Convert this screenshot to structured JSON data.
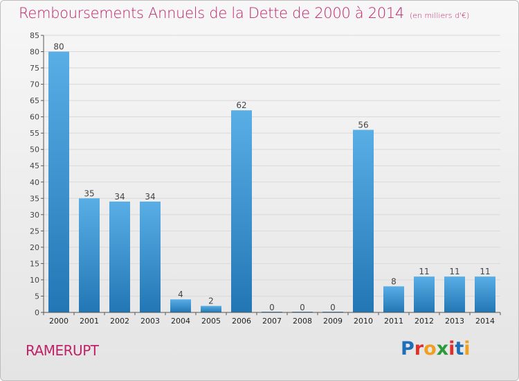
{
  "header": {
    "title": "Remboursements Annuels de la Dette de 2000 à 2014",
    "subtitle": "(en milliers d'€)"
  },
  "footer": {
    "commune": "RAMERUPT",
    "brand_letters": [
      {
        "char": "P",
        "color": "#1f6fb8"
      },
      {
        "char": "r",
        "color": "#e0302a"
      },
      {
        "char": "o",
        "color": "#f0a020"
      },
      {
        "char": "x",
        "color": "#2a9a3a"
      },
      {
        "char": "i",
        "color": "#e0302a"
      },
      {
        "char": "t",
        "color": "#1f6fb8"
      },
      {
        "char": "i",
        "color": "#f0a020"
      }
    ]
  },
  "colors": {
    "title": "#c0226a",
    "bar_light": "#5aaee6",
    "bar_dark": "#2276b4",
    "grid": "#d9d9d9",
    "axis": "#555555",
    "text": "#444444"
  },
  "chart_data": {
    "type": "bar",
    "categories": [
      "2000",
      "2001",
      "2002",
      "2003",
      "2004",
      "2005",
      "2006",
      "2007",
      "2008",
      "2009",
      "2010",
      "2011",
      "2012",
      "2013",
      "2014"
    ],
    "values": [
      80,
      35,
      34,
      34,
      4,
      2,
      62,
      0,
      0,
      0,
      56,
      8,
      11,
      11,
      11
    ],
    "data_labels": [
      "80",
      "35",
      "34",
      "34",
      "4",
      "2",
      "62",
      "0",
      "0",
      "0",
      "56",
      "8",
      "11",
      "11",
      "11"
    ],
    "y_ticks": [
      0,
      5,
      10,
      15,
      20,
      25,
      30,
      35,
      40,
      45,
      50,
      55,
      60,
      65,
      70,
      75,
      80,
      85
    ],
    "ylim": [
      0,
      85
    ],
    "grid": true
  }
}
